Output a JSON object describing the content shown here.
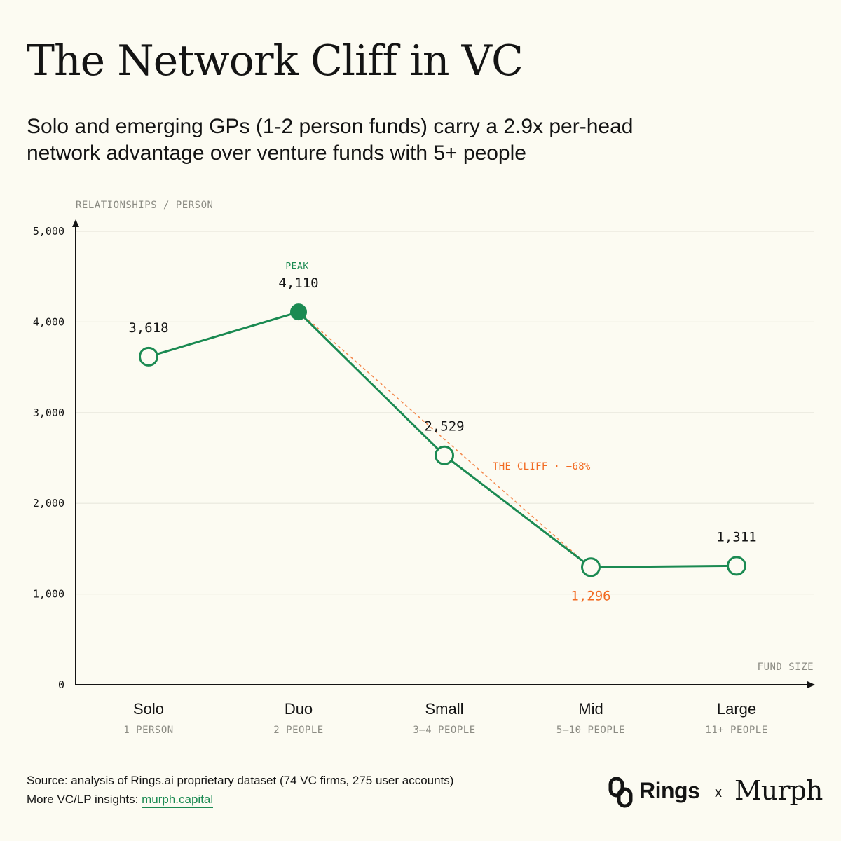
{
  "title": "The Network Cliff in VC",
  "subtitle": "Solo and emerging GPs (1-2 person funds) carry a 2.9x per-head network advantage over venture funds with 5+ people",
  "chart_data": {
    "type": "line",
    "ylabel": "RELATIONSHIPS / PERSON",
    "xlabel": "FUND SIZE",
    "ylim": [
      0,
      5000
    ],
    "yticks": [
      0,
      1000,
      2000,
      3000,
      4000,
      5000
    ],
    "ytick_labels": [
      "0",
      "1,000",
      "2,000",
      "3,000",
      "4,000",
      "5,000"
    ],
    "grid": true,
    "categories": [
      "Solo",
      "Duo",
      "Small",
      "Mid",
      "Large"
    ],
    "category_sublabels": [
      "1 PERSON",
      "2 PEOPLE",
      "3–4 PEOPLE",
      "5–10 PEOPLE",
      "11+ PEOPLE"
    ],
    "values": [
      3618,
      4110,
      2529,
      1296,
      1311
    ],
    "value_labels": [
      "3,618",
      "4,110",
      "2,529",
      "1,296",
      "1,311"
    ],
    "peak_annotation": "PEAK",
    "cliff_annotation": "THE CLIFF · −68%",
    "colors": {
      "line": "#1b8a52",
      "cliff": "#f26a21",
      "grid": "#e8e7dc",
      "axis": "#141414",
      "muted": "#8c8c84"
    }
  },
  "footer": {
    "source": "Source: analysis of Rings.ai proprietary dataset (74 VC firms, 275 user accounts)",
    "more_prefix": "More VC/LP insights: ",
    "more_link": "murph.capital"
  },
  "brand": {
    "rings": "Rings",
    "x": "x",
    "murph": "Murph"
  }
}
